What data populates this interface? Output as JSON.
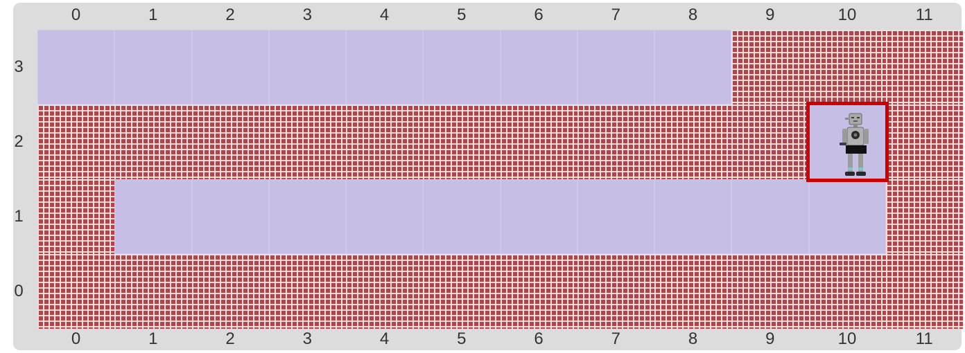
{
  "board": {
    "columns": [
      "0",
      "1",
      "2",
      "3",
      "4",
      "5",
      "6",
      "7",
      "8",
      "9",
      "10",
      "11"
    ],
    "rows": [
      "3",
      "2",
      "1",
      "0"
    ],
    "cells": [
      [
        "floor",
        "floor",
        "floor",
        "floor",
        "floor",
        "floor",
        "floor",
        "floor",
        "floor",
        "wall",
        "wall",
        "wall"
      ],
      [
        "wall",
        "wall",
        "wall",
        "wall",
        "wall",
        "wall",
        "wall",
        "wall",
        "wall",
        "wall",
        "floor",
        "wall"
      ],
      [
        "wall",
        "floor",
        "floor",
        "floor",
        "floor",
        "floor",
        "floor",
        "floor",
        "floor",
        "floor",
        "floor",
        "wall"
      ],
      [
        "wall",
        "wall",
        "wall",
        "wall",
        "wall",
        "wall",
        "wall",
        "wall",
        "wall",
        "wall",
        "wall",
        "wall"
      ]
    ]
  },
  "agent": {
    "col": 10,
    "row": 2,
    "icon": "robot-icon"
  },
  "colors": {
    "floor": "#c7bee6",
    "wall": "#b5444a",
    "mortar": "#f1dede",
    "highlight": "#cc0000",
    "frame": "#dcdcdc"
  }
}
